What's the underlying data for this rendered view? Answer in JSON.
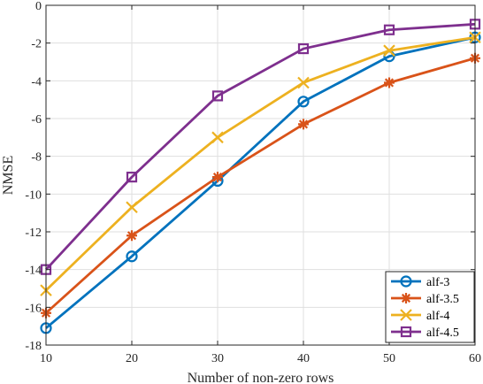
{
  "chart_data": {
    "type": "line",
    "title": "",
    "xlabel": "Number of non-zero rows",
    "ylabel": "NMSE",
    "xlim": [
      10,
      60
    ],
    "ylim": [
      -18,
      0
    ],
    "x_ticks": [
      10,
      20,
      30,
      40,
      50,
      60
    ],
    "y_ticks": [
      0,
      -2,
      -4,
      -6,
      -8,
      -10,
      -12,
      -14,
      -16,
      -18
    ],
    "x": [
      10,
      20,
      30,
      40,
      50,
      60
    ],
    "grid": true,
    "legend_position": "bottom-right",
    "series": [
      {
        "name": "alf-3",
        "marker": "circle",
        "color": "#0072bd",
        "values": [
          -17.1,
          -13.3,
          -9.3,
          -5.1,
          -2.7,
          -1.7
        ]
      },
      {
        "name": "alf-3.5",
        "marker": "star",
        "color": "#d95319",
        "values": [
          -16.3,
          -12.2,
          -9.1,
          -6.3,
          -4.1,
          -2.8
        ]
      },
      {
        "name": "alf-4",
        "marker": "x",
        "color": "#edb120",
        "values": [
          -15.1,
          -10.7,
          -7.0,
          -4.1,
          -2.4,
          -1.7
        ]
      },
      {
        "name": "alf-4.5",
        "marker": "square",
        "color": "#7e2f8e",
        "values": [
          -14.0,
          -9.1,
          -4.8,
          -2.3,
          -1.3,
          -1.0
        ]
      }
    ]
  }
}
